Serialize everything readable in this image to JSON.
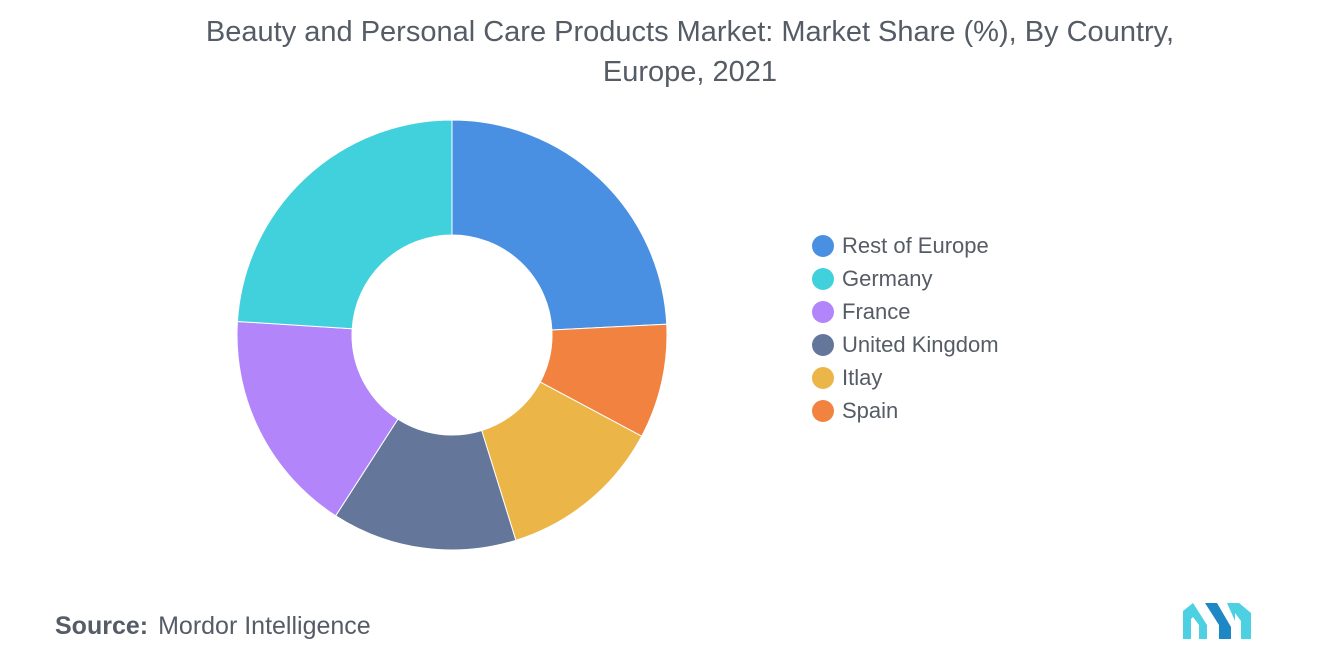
{
  "title_lines": [
    "Beauty and Personal Care Products Market: Market Share (%), By Country,",
    "Europe, 2021"
  ],
  "source": {
    "label": "Source:",
    "text": "Mordor Intelligence"
  },
  "logo": {
    "name": "mordor-intelligence-logo",
    "colors": [
      "#4dd0e1",
      "#1e88c7"
    ]
  },
  "chart_data": {
    "type": "pie",
    "variant": "donut",
    "legend_position": "right",
    "start": "top, clockwise",
    "slices": [
      {
        "label": "Rest of Europe",
        "value": 24.2,
        "color": "#4a90e2"
      },
      {
        "label": "Spain",
        "value": 8.6,
        "color": "#f2823f"
      },
      {
        "label": "Itlay",
        "value": 12.4,
        "color": "#ebb548"
      },
      {
        "label": "United Kingdom",
        "value": 13.9,
        "color": "#647699"
      },
      {
        "label": "France",
        "value": 16.9,
        "color": "#b385fa"
      },
      {
        "label": "Germany",
        "value": 24.0,
        "color": "#41d1dc"
      }
    ],
    "legend_order": [
      "Rest of Europe",
      "Germany",
      "France",
      "United Kingdom",
      "Itlay",
      "Spain"
    ]
  }
}
